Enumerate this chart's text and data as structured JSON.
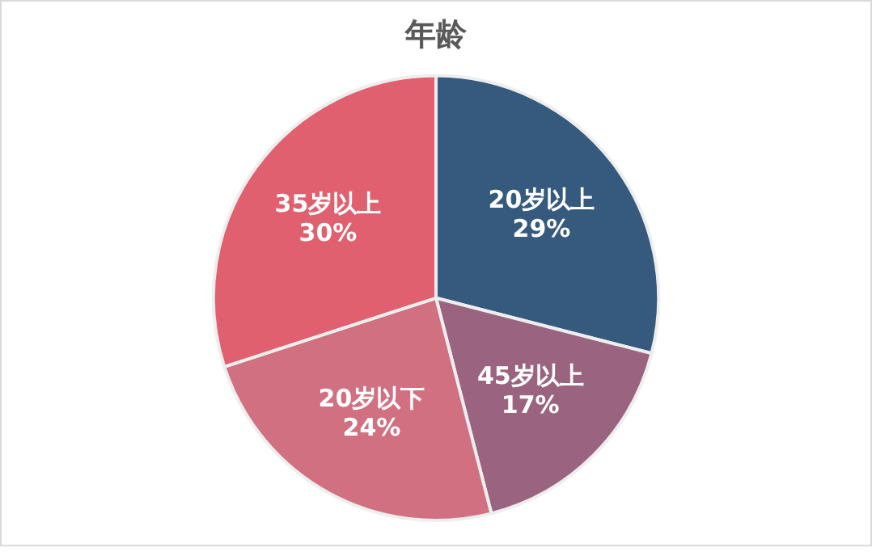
{
  "chart_data": {
    "type": "pie",
    "title": "年龄",
    "categories": [
      "20岁以上",
      "45岁以上",
      "20岁以下",
      "35岁以上"
    ],
    "values": [
      29,
      17,
      24,
      30
    ],
    "value_labels": [
      "29%",
      "17%",
      "24%",
      "30%"
    ],
    "colors": [
      "#355a7e",
      "#9a6480",
      "#d07080",
      "#e06070"
    ],
    "legend": false
  }
}
